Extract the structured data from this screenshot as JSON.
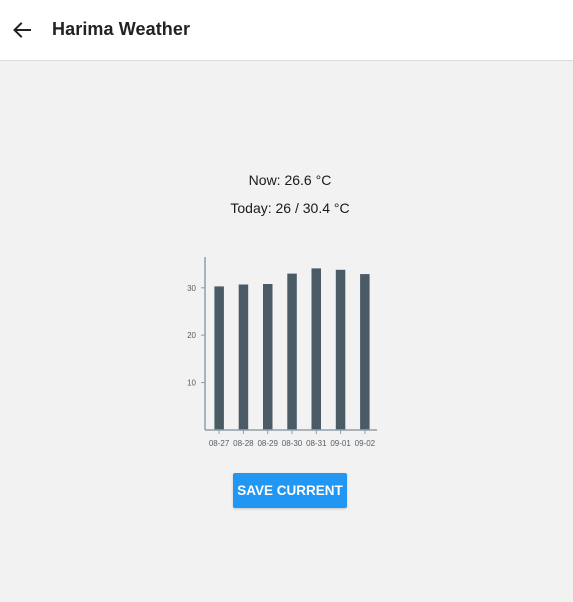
{
  "header": {
    "title": "Harima Weather",
    "back_icon": "arrow-left-icon"
  },
  "weather": {
    "now_text": "Now: 26.6 °C",
    "today_text": "Today: 26 / 30.4 °C"
  },
  "chart_data": {
    "type": "bar",
    "categories": [
      "08-27",
      "08-28",
      "08-29",
      "08-30",
      "08-31",
      "09-01",
      "09-02"
    ],
    "values": [
      30.3,
      30.7,
      30.8,
      33.0,
      34.1,
      33.8,
      32.9
    ],
    "yticks": [
      10,
      20,
      30
    ],
    "ylim": [
      0,
      36.5
    ],
    "title": "",
    "xlabel": "",
    "ylabel": "",
    "bar_color": "#4a5b66",
    "axis_color": "#8fa0ab",
    "grid": false
  },
  "actions": {
    "save_label": "SAVE CURRENT"
  },
  "colors": {
    "accent": "#2196f3",
    "background": "#f2f2f2",
    "appbar": "#ffffff"
  }
}
